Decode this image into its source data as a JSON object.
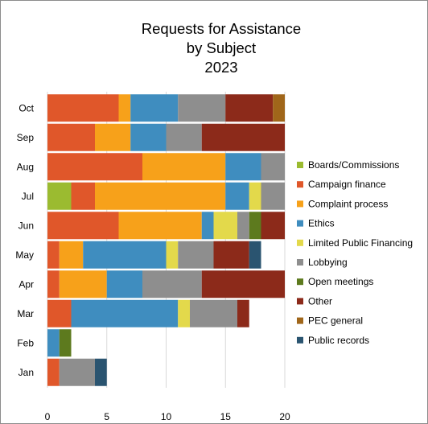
{
  "chart_data": {
    "type": "bar",
    "orientation": "horizontal",
    "stacked": true,
    "title": [
      "Requests for Assistance",
      "by Subject",
      "2023"
    ],
    "xlabel": "",
    "ylabel": "",
    "xlim": [
      0,
      20
    ],
    "xticks": [
      "0",
      "5",
      "10",
      "15",
      "20"
    ],
    "categories": [
      "Jan",
      "Feb",
      "Mar",
      "Apr",
      "May",
      "Jun",
      "Jul",
      "Aug",
      "Sep",
      "Oct"
    ],
    "legend_position": "right",
    "grid": {
      "vertical_gridlines": true,
      "color": "#d9d9d9"
    },
    "series": [
      {
        "name": "Boards/Commissions",
        "color": "#9bbb30",
        "values": [
          0,
          0,
          0,
          0,
          0,
          0,
          2,
          0,
          0,
          0
        ]
      },
      {
        "name": "Campaign finance",
        "color": "#e0572a",
        "values": [
          1,
          0,
          2,
          1,
          1,
          6,
          2,
          8,
          4,
          6
        ]
      },
      {
        "name": "Complaint process",
        "color": "#f7a11a",
        "values": [
          0,
          0,
          0,
          4,
          2,
          7,
          11,
          7,
          3,
          1
        ]
      },
      {
        "name": "Ethics",
        "color": "#3f8dbf",
        "values": [
          0,
          1,
          9,
          3,
          7,
          1,
          2,
          3,
          3,
          4
        ]
      },
      {
        "name": "Limited Public Financing",
        "color": "#e3d94b",
        "values": [
          0,
          0,
          1,
          0,
          1,
          2,
          1,
          0,
          0,
          0
        ]
      },
      {
        "name": "Lobbying",
        "color": "#8e8e8e",
        "values": [
          3,
          0,
          4,
          5,
          3,
          1,
          2,
          2,
          3,
          4
        ]
      },
      {
        "name": "Open meetings",
        "color": "#5d7a1e",
        "values": [
          0,
          1,
          0,
          0,
          0,
          1,
          0,
          0,
          0,
          0
        ]
      },
      {
        "name": "Other",
        "color": "#8c2a1a",
        "values": [
          0,
          0,
          1,
          7,
          3,
          2,
          0,
          0,
          7,
          4
        ]
      },
      {
        "name": "PEC general",
        "color": "#a0661a",
        "values": [
          0,
          0,
          0,
          0,
          0,
          0,
          0,
          0,
          0,
          1
        ]
      },
      {
        "name": "Public records",
        "color": "#2a5470",
        "values": [
          1,
          0,
          0,
          0,
          1,
          0,
          0,
          0,
          0,
          0
        ]
      }
    ]
  }
}
